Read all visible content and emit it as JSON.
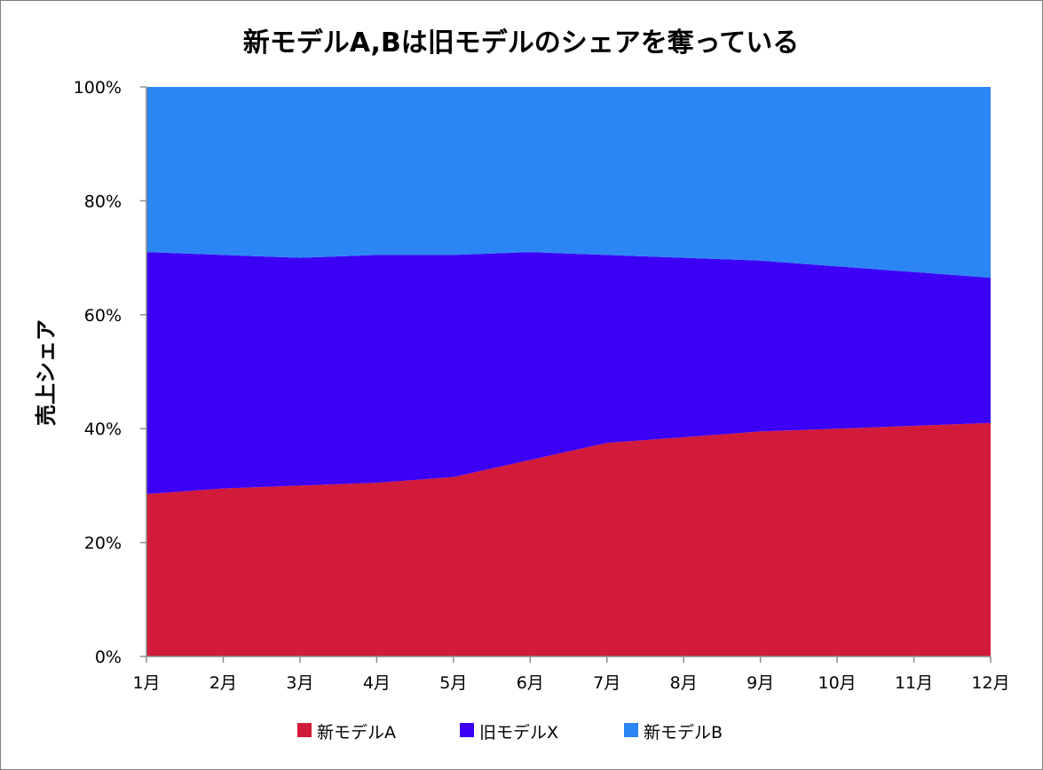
{
  "chart_data": {
    "type": "area",
    "stacked": true,
    "percent": true,
    "title": "新モデルA,Bは旧モデルのシェアを奪っている",
    "xlabel": "",
    "ylabel": "売上シェア",
    "categories": [
      "1月",
      "2月",
      "3月",
      "4月",
      "5月",
      "6月",
      "7月",
      "8月",
      "9月",
      "10月",
      "11月",
      "12月"
    ],
    "ylim": [
      0,
      100
    ],
    "yticks": [
      "0%",
      "20%",
      "40%",
      "60%",
      "80%",
      "100%"
    ],
    "grid": false,
    "legend_position": "bottom",
    "series": [
      {
        "name": "新モデルA",
        "color": "#d21a3b",
        "values": [
          28.5,
          29.5,
          30,
          30.5,
          31.5,
          34.5,
          37.5,
          38.5,
          39.5,
          40,
          40.5,
          41
        ]
      },
      {
        "name": "旧モデルX",
        "color": "#3c00f5",
        "values": [
          42.5,
          41,
          40,
          40,
          39,
          36.5,
          33,
          31.5,
          30,
          28.5,
          27,
          25.5
        ]
      },
      {
        "name": "新モデルB",
        "color": "#2b85f5",
        "values": [
          29,
          29.5,
          30,
          29.5,
          29.5,
          29,
          29.5,
          30,
          30.5,
          31.5,
          32.5,
          33.5
        ]
      }
    ]
  }
}
